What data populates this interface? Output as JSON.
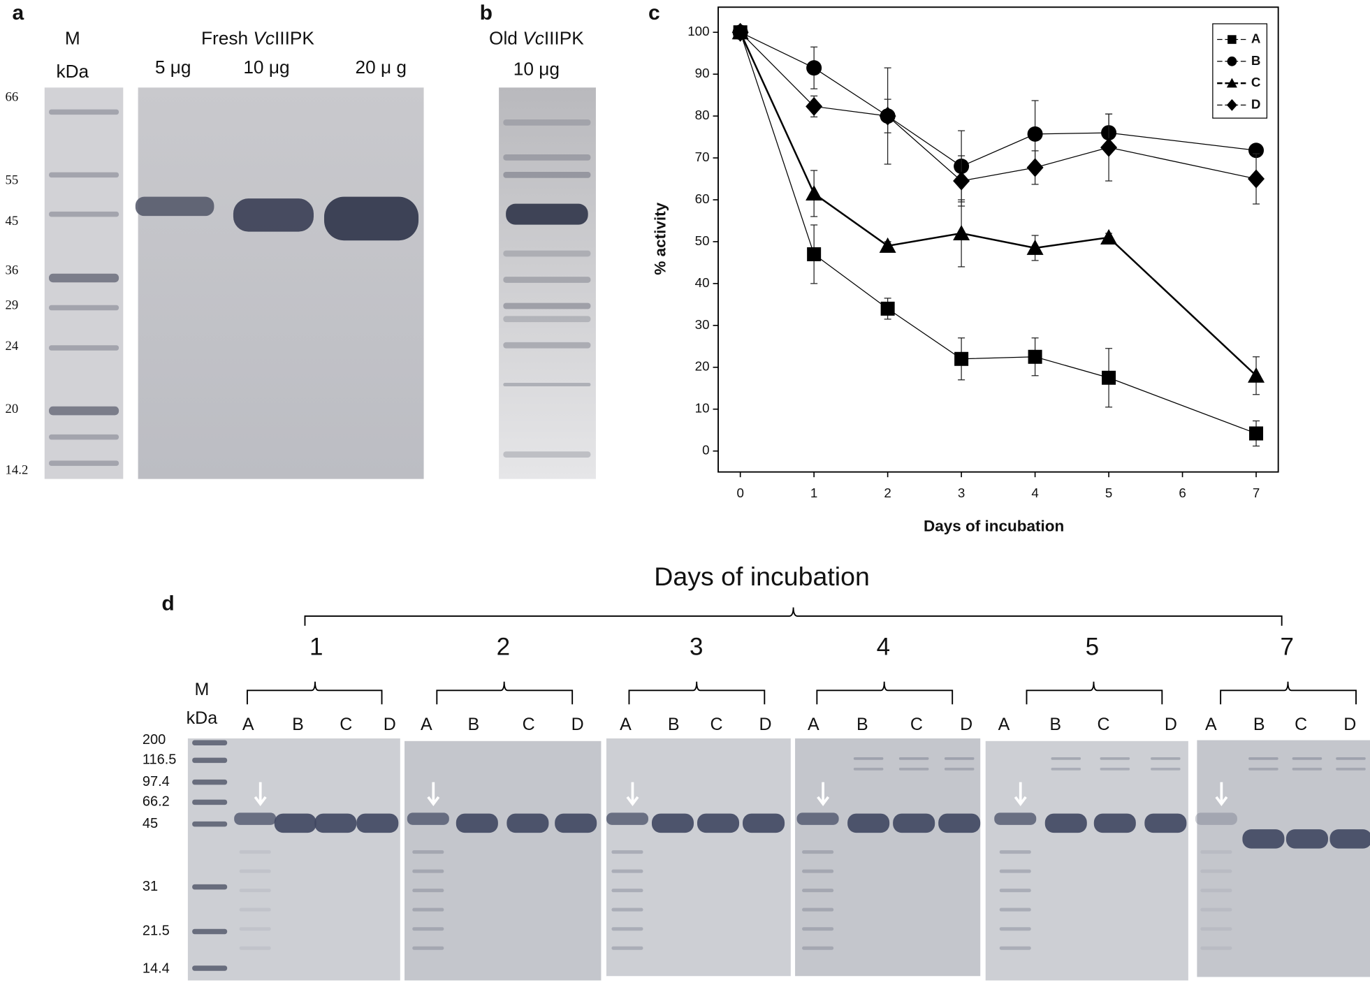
{
  "panel_a": {
    "label": "a",
    "marker": "M",
    "unit": "kDa",
    "title_parts": [
      "Fresh ",
      "Vc",
      "IIIPK"
    ],
    "lanes": [
      "5 μg",
      "10 μg",
      "20 μ g"
    ],
    "ladder": [
      "66",
      "55",
      "45",
      "36",
      "29",
      "24",
      "20",
      "14.2"
    ]
  },
  "panel_b": {
    "label": "b",
    "title_parts": [
      "Old ",
      "Vc",
      "IIIPK"
    ],
    "lane": "10 μg"
  },
  "chart_data": {
    "type": "line",
    "label": "c",
    "x_label": "Days of incubation",
    "y_label": "% activity",
    "x": [
      0,
      1,
      2,
      3,
      4,
      5,
      7
    ],
    "xlim": [
      -0.3,
      7.3
    ],
    "xticks": [
      0,
      1,
      2,
      3,
      4,
      5,
      6,
      7
    ],
    "ylim": [
      -5,
      106
    ],
    "yticks": [
      0,
      10,
      20,
      30,
      40,
      50,
      60,
      70,
      80,
      90,
      100
    ],
    "legend": "top-right",
    "series": [
      {
        "name": "A",
        "color": "#000000",
        "marker": "square",
        "line_width": 1,
        "values": [
          100,
          47,
          34,
          22,
          22.5,
          17.5,
          4.2
        ],
        "errors": [
          0,
          7,
          2.5,
          5,
          4.5,
          7,
          3
        ]
      },
      {
        "name": "B",
        "color": "#000000",
        "marker": "circle",
        "line_width": 1,
        "values": [
          100,
          91.5,
          80,
          68,
          75.7,
          76,
          71.8
        ],
        "errors": [
          0,
          5,
          4,
          8.5,
          8,
          4.5,
          1
        ]
      },
      {
        "name": "C",
        "color": "#000000",
        "marker": "triangle",
        "line_width": 2,
        "values": [
          100,
          61.5,
          49,
          52,
          48.5,
          51,
          18
        ],
        "errors": [
          0,
          5.5,
          1,
          8,
          3,
          1,
          4.5
        ]
      },
      {
        "name": "D",
        "color": "#000000",
        "marker": "diamond",
        "line_width": 1,
        "values": [
          100,
          82.3,
          80,
          64.5,
          67.7,
          72.5,
          65
        ],
        "errors": [
          0,
          2.5,
          11.5,
          6,
          4,
          8,
          6
        ]
      }
    ]
  },
  "panel_d": {
    "label": "d",
    "title": "Days of incubation",
    "marker": "M",
    "unit": "kDa",
    "ladder": [
      "200",
      "116.5",
      "97.4",
      "66.2",
      "45",
      "31",
      "21.5",
      "14.4"
    ],
    "days": [
      {
        "label": "1",
        "lanes": [
          "A",
          "B",
          "C",
          "D"
        ]
      },
      {
        "label": "2",
        "lanes": [
          "A",
          "B",
          "C",
          "D"
        ]
      },
      {
        "label": "3",
        "lanes": [
          "A",
          "B",
          "C",
          "D"
        ]
      },
      {
        "label": "4",
        "lanes": [
          "A",
          "B",
          "C",
          "D"
        ]
      },
      {
        "label": "5",
        "lanes": [
          "A",
          "B",
          "C",
          "D"
        ]
      },
      {
        "label": "7",
        "lanes": [
          "A",
          "B",
          "C",
          "D"
        ]
      }
    ]
  }
}
